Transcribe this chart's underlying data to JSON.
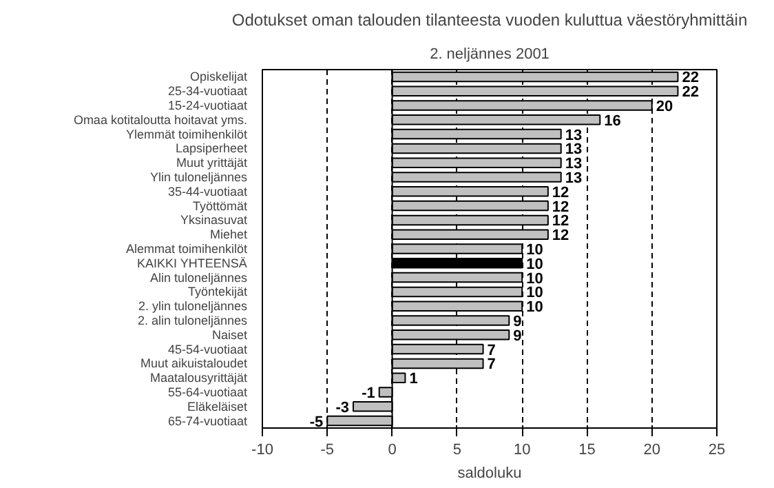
{
  "chart_data": {
    "type": "bar",
    "orientation": "horizontal",
    "title": "Odotukset oman talouden tilanteesta vuoden kuluttua väestöryhmittäin",
    "subtitle": "2. neljännes 2001",
    "xlabel": "saldoluku",
    "categories": [
      "Opiskelijat",
      "25-34-vuotiaat",
      "15-24-vuotiaat",
      "Omaa kotitaloutta hoitavat yms.",
      "Ylemmät toimihenkilöt",
      "Lapsiperheet",
      "Muut yrittäjät",
      "Ylin tuloneljännes",
      "35-44-vuotiaat",
      "Työttömät",
      "Yksinasuvat",
      "Miehet",
      "Alemmat toimihenkilöt",
      "KAIKKI YHTEENSÄ",
      "Alin tuloneljännes",
      "Työntekijät",
      "2. ylin tuloneljännes",
      "2. alin tuloneljännes",
      "Naiset",
      "45-54-vuotiaat",
      "Muut aikuistaloudet",
      "Maatalousyrittäjät",
      "55-64-vuotiaat",
      "Eläkeläiset",
      "65-74-vuotiaat"
    ],
    "values": [
      22,
      22,
      20,
      16,
      13,
      13,
      13,
      13,
      12,
      12,
      12,
      12,
      10,
      10,
      10,
      10,
      10,
      9,
      9,
      7,
      7,
      1,
      -1,
      -3,
      -5
    ],
    "colors": [
      "#c0c0c0",
      "#c0c0c0",
      "#c0c0c0",
      "#c0c0c0",
      "#c0c0c0",
      "#c0c0c0",
      "#c0c0c0",
      "#c0c0c0",
      "#c0c0c0",
      "#c0c0c0",
      "#c0c0c0",
      "#c0c0c0",
      "#c0c0c0",
      "#000000",
      "#c0c0c0",
      "#c0c0c0",
      "#c0c0c0",
      "#c0c0c0",
      "#c0c0c0",
      "#c0c0c0",
      "#c0c0c0",
      "#c0c0c0",
      "#c0c0c0",
      "#c0c0c0",
      "#c0c0c0"
    ],
    "xlim": [
      -10,
      25
    ],
    "xticks": [
      -10,
      -5,
      0,
      5,
      10,
      15,
      20,
      25
    ],
    "grid": "x",
    "data_labels": true
  }
}
